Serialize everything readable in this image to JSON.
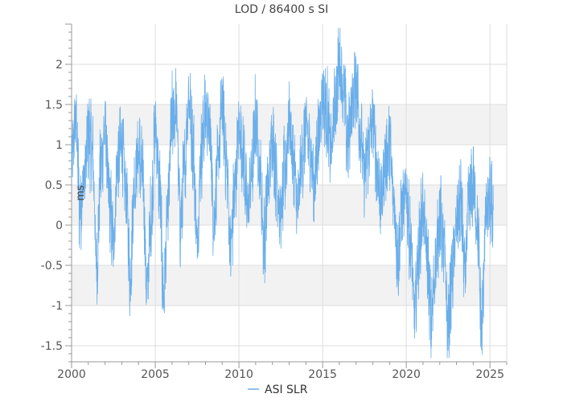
{
  "chart_data": {
    "type": "line",
    "title": "LOD / 86400 s SI",
    "xlabel": "",
    "ylabel": "ms",
    "xlim": [
      2000,
      2026
    ],
    "ylim": [
      -1.7,
      2.5
    ],
    "x_ticks": [
      2000,
      2005,
      2010,
      2015,
      2020,
      2025
    ],
    "x_tick_labels": [
      "2000",
      "2005",
      "2010",
      "2015",
      "2020",
      "2025"
    ],
    "y_ticks": [
      -1.5,
      -1,
      -0.5,
      0,
      0.5,
      1,
      1.5,
      2
    ],
    "y_tick_labels": [
      "-1.5",
      "-1",
      "-0.5",
      "0",
      "0.5",
      "1",
      "1.5",
      "2"
    ],
    "grid": true,
    "bands": [
      [
        -1,
        -0.5
      ],
      [
        0,
        0.5
      ],
      [
        1,
        1.5
      ]
    ],
    "legend_position": "bottom-center",
    "colors": {
      "series": "#6aaeea",
      "band": "#f2f2f2",
      "grid": "#dddddd",
      "axis": "#999999"
    },
    "series": [
      {
        "name": "ASI SLR",
        "x": [
          2000.0,
          2000.25,
          2000.5,
          2000.75,
          2001.0,
          2001.25,
          2001.5,
          2001.75,
          2002.0,
          2002.25,
          2002.5,
          2002.75,
          2003.0,
          2003.25,
          2003.5,
          2003.75,
          2004.0,
          2004.25,
          2004.5,
          2004.75,
          2005.0,
          2005.25,
          2005.5,
          2005.75,
          2006.0,
          2006.25,
          2006.5,
          2006.75,
          2007.0,
          2007.25,
          2007.5,
          2007.75,
          2008.0,
          2008.25,
          2008.5,
          2008.75,
          2009.0,
          2009.25,
          2009.5,
          2009.75,
          2010.0,
          2010.25,
          2010.5,
          2010.75,
          2011.0,
          2011.25,
          2011.5,
          2011.75,
          2012.0,
          2012.25,
          2012.5,
          2012.75,
          2013.0,
          2013.25,
          2013.5,
          2013.75,
          2014.0,
          2014.25,
          2014.5,
          2014.75,
          2015.0,
          2015.25,
          2015.5,
          2015.75,
          2016.0,
          2016.25,
          2016.5,
          2016.75,
          2017.0,
          2017.25,
          2017.5,
          2017.75,
          2018.0,
          2018.25,
          2018.5,
          2018.75,
          2019.0,
          2019.25,
          2019.5,
          2019.75,
          2020.0,
          2020.25,
          2020.5,
          2020.75,
          2021.0,
          2021.25,
          2021.5,
          2021.75,
          2022.0,
          2022.25,
          2022.5,
          2022.75,
          2023.0,
          2023.25,
          2023.5,
          2023.75,
          2024.0,
          2024.25,
          2024.5,
          2024.75,
          2025.0,
          2025.2
        ],
        "y": [
          0.8,
          1.3,
          0.2,
          0.6,
          1.1,
          0.9,
          -0.5,
          0.7,
          1.2,
          0.3,
          -0.2,
          0.8,
          1.0,
          0.4,
          -0.6,
          0.5,
          0.9,
          0.6,
          -0.8,
          0.1,
          1.2,
          0.5,
          -0.9,
          0.2,
          1.3,
          1.5,
          0.0,
          0.7,
          1.6,
          1.0,
          -0.2,
          0.9,
          1.4,
          1.2,
          0.1,
          0.8,
          1.5,
          0.8,
          -0.3,
          0.4,
          1.2,
          0.9,
          0.2,
          0.6,
          1.3,
          0.7,
          -0.2,
          0.5,
          1.1,
          0.6,
          0.1,
          0.7,
          1.3,
          0.8,
          0.2,
          0.8,
          1.2,
          0.9,
          0.5,
          1.1,
          1.6,
          1.4,
          0.9,
          1.5,
          2.0,
          1.7,
          1.0,
          1.5,
          1.8,
          1.2,
          0.6,
          1.0,
          1.3,
          0.7,
          0.3,
          0.8,
          1.0,
          0.3,
          -0.4,
          0.2,
          0.4,
          -0.2,
          -1.1,
          -0.3,
          0.2,
          -0.4,
          -1.2,
          -0.5,
          0.1,
          -0.3,
          -1.3,
          -0.6,
          0.0,
          0.3,
          -0.6,
          0.3,
          0.5,
          0.0,
          -1.3,
          0.1,
          0.3,
          0.2
        ]
      }
    ]
  }
}
